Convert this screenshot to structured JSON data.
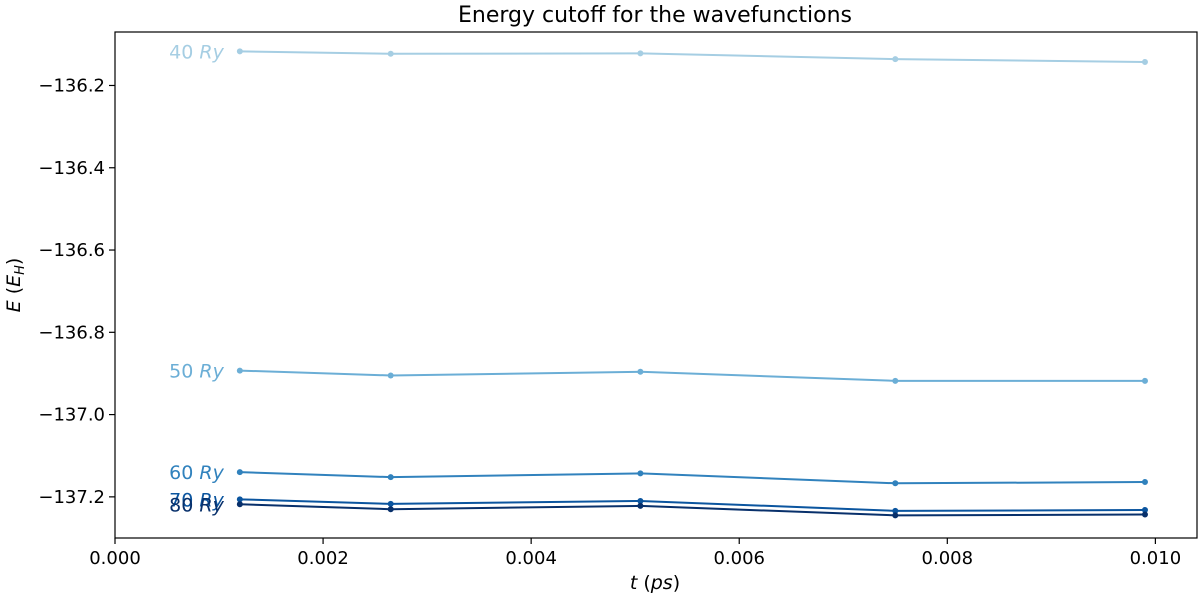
{
  "chart_data": {
    "type": "line",
    "title": "Energy cutoff for the wavefunctions",
    "xlabel": "t (ps)",
    "ylabel": "E (E_H)",
    "xlim": [
      0.0,
      0.0104
    ],
    "ylim": [
      -137.3,
      -136.07
    ],
    "xticks": [
      "0.000",
      "0.002",
      "0.004",
      "0.006",
      "0.008",
      "0.010"
    ],
    "yticks": [
      "−136.2",
      "−136.4",
      "−136.6",
      "−136.8",
      "−137.0",
      "−137.2"
    ],
    "xtick_values": [
      0.0,
      0.002,
      0.004,
      0.006,
      0.008,
      0.01
    ],
    "ytick_values": [
      -136.2,
      -136.4,
      -136.6,
      -136.8,
      -137.0,
      -137.2
    ],
    "grid": false,
    "x": [
      0.0012,
      0.00265,
      0.00505,
      0.0075,
      0.0099
    ],
    "series": [
      {
        "name": "40 Ry",
        "color": "#a6cee3",
        "values": [
          -136.117,
          -136.123,
          -136.122,
          -136.136,
          -136.143
        ]
      },
      {
        "name": "50 Ry",
        "color": "#6baed6",
        "values": [
          -136.893,
          -136.905,
          -136.896,
          -136.918,
          -136.918
        ]
      },
      {
        "name": "60 Ry",
        "color": "#3182bd",
        "values": [
          -137.14,
          -137.152,
          -137.143,
          -137.167,
          -137.164
        ]
      },
      {
        "name": "70 Ry",
        "color": "#0b559f",
        "values": [
          -137.206,
          -137.217,
          -137.21,
          -137.234,
          -137.232
        ]
      },
      {
        "name": "80 Ry",
        "color": "#08306b",
        "values": [
          -137.218,
          -137.23,
          -137.222,
          -137.245,
          -137.243
        ]
      }
    ]
  }
}
